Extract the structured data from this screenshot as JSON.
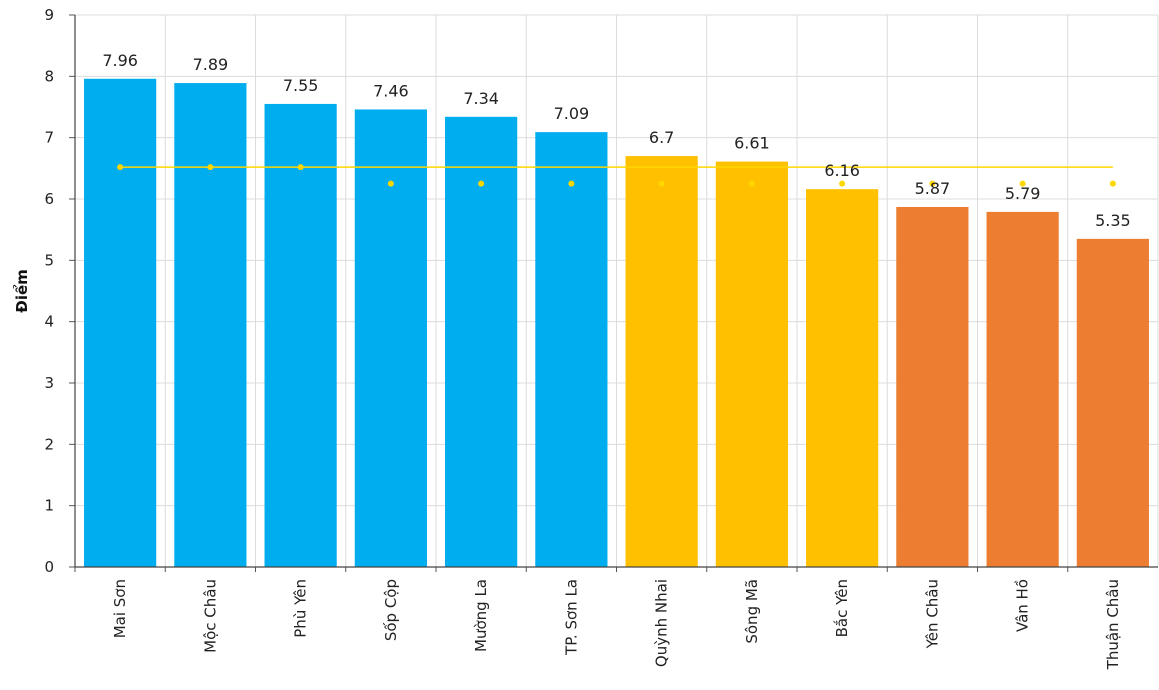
{
  "chart_data": {
    "type": "bar",
    "title": "",
    "xlabel": "",
    "ylabel": "Điểm",
    "ylim": [
      0,
      9
    ],
    "yticks": [
      0,
      1,
      2,
      3,
      4,
      5,
      6,
      7,
      8,
      9
    ],
    "grid": true,
    "categories": [
      "Mai Sơn",
      "Mộc Châu",
      "Phù Yên",
      "Sốp Cộp",
      "Mường La",
      "TP. Sơn La",
      "Quỳnh Nhai",
      "Sông Mã",
      "Bắc Yên",
      "Yên Châu",
      "Vân Hồ",
      "Thuận Châu"
    ],
    "values": [
      7.96,
      7.89,
      7.55,
      7.46,
      7.34,
      7.09,
      6.7,
      6.61,
      6.16,
      5.87,
      5.79,
      5.35
    ],
    "value_labels": [
      "7.96",
      "7.89",
      "7.55",
      "7.46",
      "7.34",
      "7.09",
      "6.7",
      "6.61",
      "6.16",
      "5.87",
      "5.79",
      "5.35"
    ],
    "bar_colors": [
      "#00adef",
      "#00adef",
      "#00adef",
      "#00adef",
      "#00adef",
      "#00adef",
      "#ffc000",
      "#ffc000",
      "#ffc000",
      "#ed7d31",
      "#ed7d31",
      "#ed7d31"
    ],
    "reference_line": {
      "value": 6.52,
      "color": "#ffd700"
    },
    "reference_points": {
      "values": [
        6.52,
        6.52,
        6.52,
        6.25,
        6.25,
        6.25,
        6.25,
        6.25,
        6.25,
        6.25,
        6.25,
        6.25
      ],
      "color": "#ffd700"
    }
  }
}
